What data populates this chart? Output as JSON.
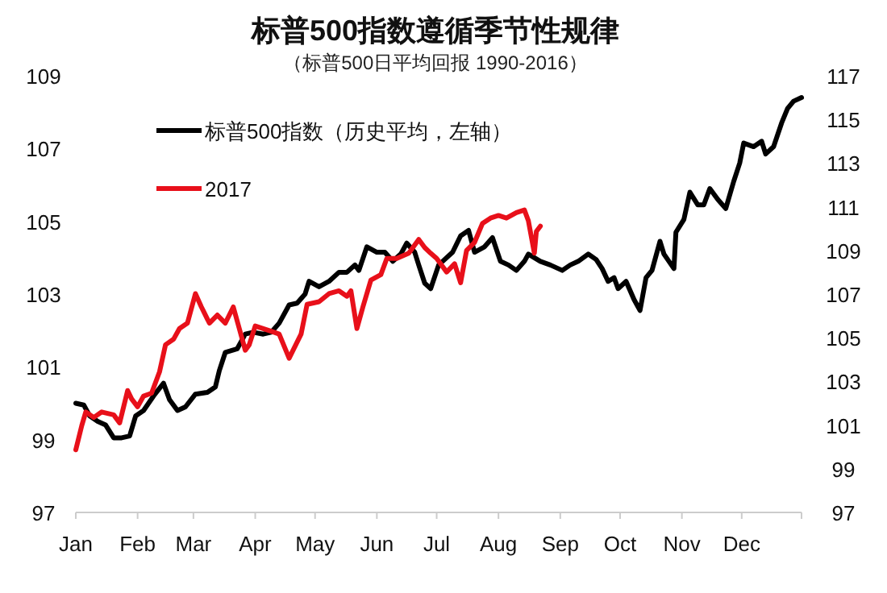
{
  "chart_data": {
    "type": "line",
    "title": "标普500指数遵循季节性规律",
    "subtitle": "（标普500日平均回报 1990-2016）",
    "series": [
      {
        "name": "标普500指数（历史平均，左轴）",
        "color": "#000000",
        "x": [
          "--01-01",
          "--01-05",
          "--01-08",
          "--01-12",
          "--01-16",
          "--01-20",
          "--01-24",
          "--01-28",
          "--01-31",
          "--02-04",
          "--02-09",
          "--02-14",
          "--02-17",
          "--02-21",
          "--02-25",
          "--03-02",
          "--03-08",
          "--03-12",
          "--03-14",
          "--03-17",
          "--03-23",
          "--03-27",
          "--03-31",
          "--04-05",
          "--04-09",
          "--04-13",
          "--04-18",
          "--04-22",
          "--04-26",
          "--04-28",
          "--05-03",
          "--05-08",
          "--05-13",
          "--05-17",
          "--05-21",
          "--05-23",
          "--05-27",
          "--06-01",
          "--06-05",
          "--06-09",
          "--06-13",
          "--06-16",
          "--06-20",
          "--06-22",
          "--06-25",
          "--06-28",
          "--07-02",
          "--07-09",
          "--07-13",
          "--07-17",
          "--07-20",
          "--07-25",
          "--07-29",
          "--08-02",
          "--08-06",
          "--08-10",
          "--08-14",
          "--08-16",
          "--08-22",
          "--08-27",
          "--09-02",
          "--09-06",
          "--09-10",
          "--09-15",
          "--09-19",
          "--09-22",
          "--09-25",
          "--09-28",
          "--09-30",
          "--10-04",
          "--10-08",
          "--10-11",
          "--10-14",
          "--10-17",
          "--10-21",
          "--10-23",
          "--10-28",
          "--10-29",
          "--11-02",
          "--11-05",
          "--11-09",
          "--11-12",
          "--11-15",
          "--11-19",
          "--11-23",
          "--11-27",
          "--11-30",
          "--12-02",
          "--12-07",
          "--12-11",
          "--12-13",
          "--12-17",
          "--12-21",
          "--12-24",
          "--12-27",
          "--12-31"
        ],
        "values": [
          100.0,
          99.95,
          99.65,
          99.5,
          99.4,
          99.05,
          99.05,
          99.1,
          99.65,
          99.8,
          100.2,
          100.55,
          100.1,
          99.8,
          99.9,
          100.25,
          100.3,
          100.45,
          100.9,
          101.4,
          101.5,
          101.9,
          101.95,
          101.9,
          101.95,
          102.2,
          102.7,
          102.75,
          103.0,
          103.35,
          103.2,
          103.35,
          103.6,
          103.6,
          103.8,
          103.65,
          104.3,
          104.15,
          104.15,
          103.9,
          104.1,
          104.4,
          104.15,
          103.8,
          103.3,
          103.15,
          103.8,
          104.15,
          104.6,
          104.75,
          104.15,
          104.3,
          104.55,
          103.9,
          103.8,
          103.65,
          103.9,
          104.1,
          103.9,
          103.8,
          103.65,
          103.8,
          103.9,
          104.1,
          103.95,
          103.7,
          103.35,
          103.45,
          103.15,
          103.35,
          102.85,
          102.55,
          103.45,
          103.65,
          104.45,
          104.1,
          103.7,
          104.7,
          105.05,
          105.8,
          105.45,
          105.45,
          105.9,
          105.6,
          105.35,
          106.1,
          106.6,
          107.15,
          107.05,
          107.2,
          106.85,
          107.05,
          107.7,
          108.1,
          108.3,
          108.4
        ]
      },
      {
        "name": "2017",
        "color": "#e8101a",
        "axis": "y2",
        "x": [
          "--01-01",
          "--01-04",
          "--01-06",
          "--01-10",
          "--01-14",
          "--01-20",
          "--01-23",
          "--01-27",
          "--01-29",
          "--02-01",
          "--02-04",
          "--02-08",
          "--02-12",
          "--02-15",
          "--02-19",
          "--02-22",
          "--02-26",
          "--03-02",
          "--03-05",
          "--03-09",
          "--03-13",
          "--03-17",
          "--03-21",
          "--03-24",
          "--03-27",
          "--03-29",
          "--04-01",
          "--04-05",
          "--04-09",
          "--04-13",
          "--04-18",
          "--04-20",
          "--04-24",
          "--04-27",
          "--05-03",
          "--05-08",
          "--05-13",
          "--05-17",
          "--05-19",
          "--05-22",
          "--05-25",
          "--05-29",
          "--06-03",
          "--06-06",
          "--06-11",
          "--06-17",
          "--06-22",
          "--06-25",
          "--06-28",
          "--07-01",
          "--07-06",
          "--07-10",
          "--07-13",
          "--07-16",
          "--07-20",
          "--07-24",
          "--07-28",
          "--08-01",
          "--08-05",
          "--08-10",
          "--08-14",
          "--08-16",
          "--08-19",
          "--08-20",
          "--08-22"
        ],
        "values": [
          99.87,
          100.98,
          101.6,
          101.35,
          101.6,
          101.47,
          101.1,
          102.58,
          102.2,
          101.84,
          102.33,
          102.46,
          103.44,
          104.68,
          104.93,
          105.42,
          105.67,
          107.02,
          106.41,
          105.67,
          106.04,
          105.67,
          106.41,
          105.42,
          104.43,
          104.68,
          105.54,
          105.42,
          105.3,
          105.17,
          104.06,
          104.43,
          105.17,
          106.53,
          106.65,
          107.02,
          107.15,
          106.9,
          107.15,
          105.42,
          106.41,
          107.64,
          107.89,
          108.63,
          108.63,
          108.87,
          109.5,
          109.13,
          108.87,
          108.63,
          108.01,
          108.39,
          107.52,
          109.0,
          109.37,
          110.24,
          110.48,
          110.6,
          110.48,
          110.73,
          110.85,
          110.36,
          108.87,
          109.87,
          110.11
        ]
      }
    ],
    "xlim": [
      "--01-01",
      "--12-31"
    ],
    "xticks": [
      {
        "value": "--01-01",
        "label": "Jan"
      },
      {
        "value": "--02-01",
        "label": "Feb"
      },
      {
        "value": "--03-01",
        "label": "Mar"
      },
      {
        "value": "--04-01",
        "label": "Apr"
      },
      {
        "value": "--05-01",
        "label": "May"
      },
      {
        "value": "--06-01",
        "label": "Jun"
      },
      {
        "value": "--07-01",
        "label": "Jul"
      },
      {
        "value": "--08-01",
        "label": "Aug"
      },
      {
        "value": "--09-01",
        "label": "Sep"
      },
      {
        "value": "--10-01",
        "label": "Oct"
      },
      {
        "value": "--11-01",
        "label": "Nov"
      },
      {
        "value": "--12-01",
        "label": "Dec"
      }
    ],
    "ylim": [
      97,
      109
    ],
    "yticks": [
      97,
      99,
      101,
      103,
      105,
      107,
      109
    ],
    "y2lim": [
      97,
      117
    ],
    "y2ticks": [
      97,
      99,
      101,
      103,
      105,
      107,
      109,
      111,
      113,
      115,
      117
    ],
    "legend": "top left",
    "grid": false,
    "marker": "none",
    "line_style": "solid"
  }
}
